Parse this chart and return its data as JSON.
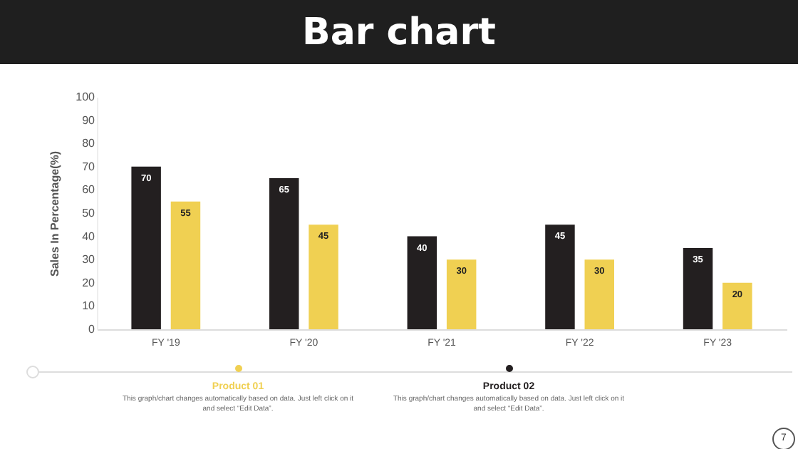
{
  "chart_data": {
    "type": "bar",
    "title": "Bar chart",
    "ylabel": "Sales In Percentage(%)",
    "categories": [
      "FY '19",
      "FY '20",
      "FY '21",
      "FY '22",
      "FY '23"
    ],
    "series": [
      {
        "name": "Product 02",
        "color": "#231f20",
        "values": [
          70,
          65,
          40,
          45,
          35
        ]
      },
      {
        "name": "Product 01",
        "color": "#f0d052",
        "values": [
          55,
          45,
          30,
          30,
          20
        ]
      }
    ],
    "ylim": [
      0,
      100
    ],
    "yticks": [
      0,
      10,
      20,
      30,
      40,
      50,
      60,
      70,
      80,
      90,
      100
    ],
    "grid": false,
    "data_labels": true,
    "legend": "bottom",
    "annotations": [
      "This graph/chart changes automatically based on data. Just left click on it and select “Edit Data”.",
      "This graph/chart changes automatically based on data. Just left click on it and select “Edit Data”.",
      "7"
    ]
  }
}
